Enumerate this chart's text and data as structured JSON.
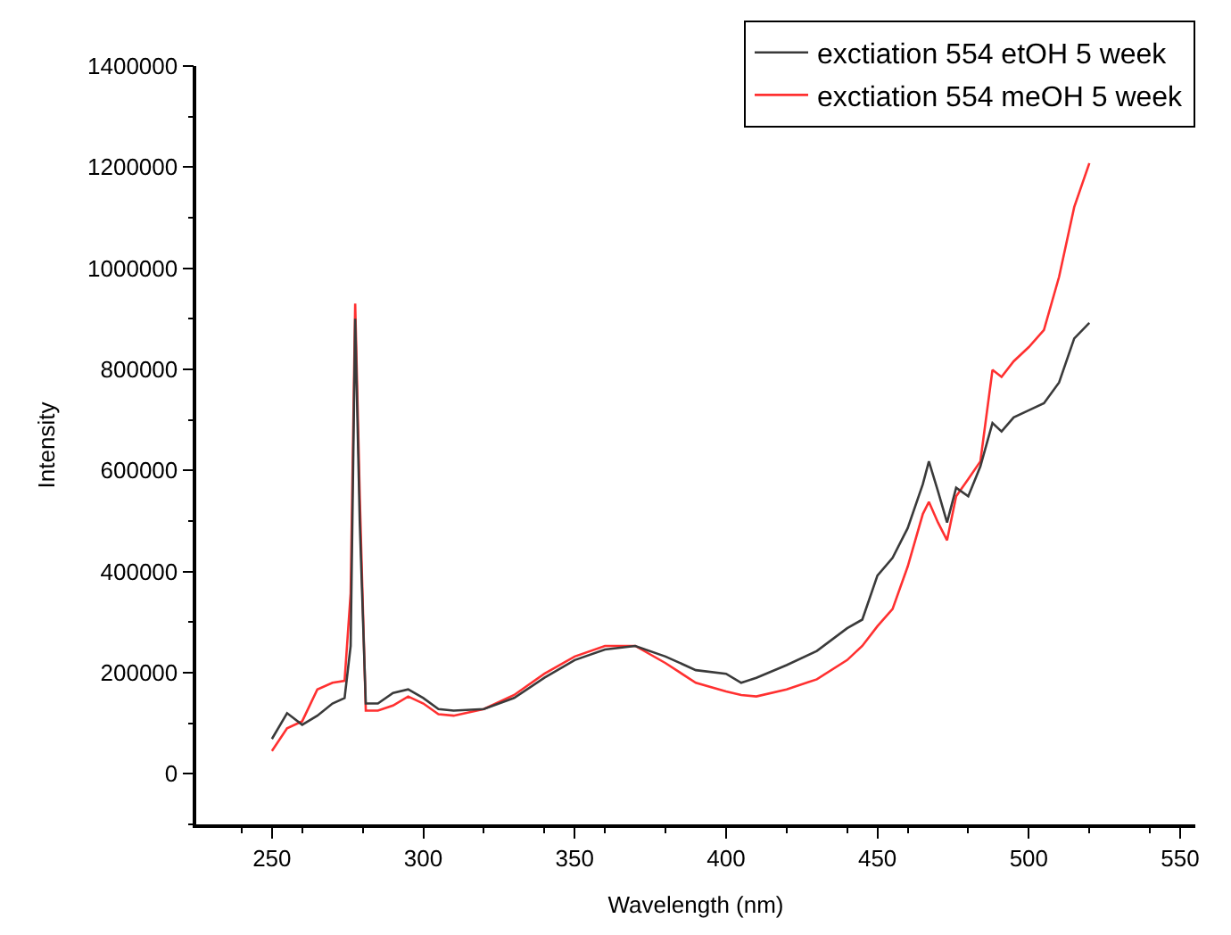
{
  "chart_data": {
    "type": "line",
    "xlabel": "Wavelength (nm)",
    "ylabel": "Intensity",
    "xlim": [
      225,
      555
    ],
    "xticks": [
      250,
      300,
      350,
      400,
      450,
      500,
      550
    ],
    "ylim": [
      -100000,
      1400000
    ],
    "yticks": [
      0,
      200000,
      400000,
      600000,
      800000,
      1000000,
      1200000,
      1400000
    ],
    "legend": "top right",
    "marker": "none",
    "line_style": "solid",
    "series": [
      {
        "name": "exctiation 554 etOH 5 week",
        "color": "#3a3a3a",
        "x": [
          250,
          255,
          260,
          265,
          270,
          274,
          276,
          277.5,
          279,
          281,
          285,
          290,
          295,
          300,
          305,
          310,
          320,
          330,
          340,
          350,
          360,
          370,
          380,
          390,
          400,
          405,
          410,
          420,
          430,
          440,
          445,
          450,
          455,
          460,
          465,
          467,
          470,
          473,
          476,
          480,
          484,
          488,
          491,
          495,
          500,
          505,
          510,
          515,
          520
        ],
        "values": [
          69000,
          120000,
          97000,
          115000,
          139000,
          150000,
          253000,
          900000,
          500000,
          139000,
          139000,
          160000,
          167000,
          150000,
          128000,
          125000,
          128000,
          150000,
          190000,
          225000,
          246000,
          253000,
          232000,
          205000,
          198000,
          180000,
          190000,
          215000,
          243000,
          288000,
          305000,
          392000,
          427000,
          486000,
          573000,
          618000,
          559000,
          497000,
          566000,
          549000,
          608000,
          694000,
          677000,
          705000,
          719000,
          733000,
          774000,
          861000,
          892000
        ]
      },
      {
        "name": "exctiation 554 meOH 5 week",
        "color": "#ff3030",
        "x": [
          250,
          255,
          260,
          265,
          270,
          274,
          276,
          277.5,
          279,
          281,
          285,
          290,
          295,
          300,
          305,
          310,
          320,
          330,
          340,
          350,
          360,
          370,
          380,
          390,
          400,
          405,
          410,
          420,
          430,
          440,
          445,
          450,
          455,
          460,
          465,
          467,
          470,
          473,
          476,
          480,
          484,
          488,
          491,
          495,
          500,
          505,
          510,
          515,
          520
        ],
        "values": [
          45000,
          90000,
          104000,
          167000,
          180000,
          184000,
          357000,
          930000,
          550000,
          125000,
          125000,
          135000,
          153000,
          139000,
          118000,
          115000,
          128000,
          156000,
          198000,
          232000,
          253000,
          253000,
          219000,
          180000,
          163000,
          156000,
          153000,
          167000,
          187000,
          225000,
          253000,
          292000,
          326000,
          410000,
          514000,
          538000,
          497000,
          462000,
          549000,
          583000,
          618000,
          799000,
          785000,
          816000,
          844000,
          878000,
          983000,
          1121000,
          1208000
        ]
      }
    ]
  }
}
